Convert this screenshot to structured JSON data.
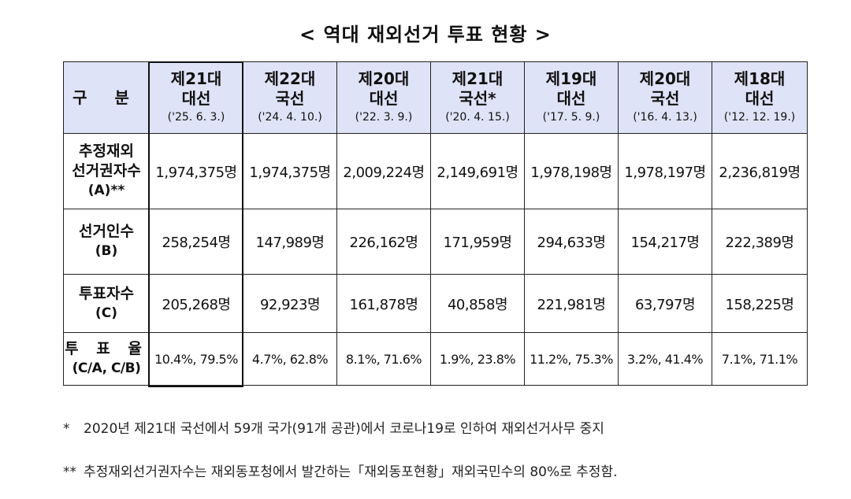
{
  "title": "< 역대 재외선거 투표 현황 >",
  "table": {
    "corner": "구 분",
    "columns": [
      {
        "name": "제21대",
        "type": "대선",
        "date": "('25. 6. 3.)"
      },
      {
        "name": "제22대",
        "type": "국선",
        "date": "('24. 4. 10.)"
      },
      {
        "name": "제20대",
        "type": "대선",
        "date": "('22. 3. 9.)"
      },
      {
        "name": "제21대",
        "type": "국선*",
        "date": "('20. 4. 15.)"
      },
      {
        "name": "제19대",
        "type": "대선",
        "date": "('17. 5. 9.)"
      },
      {
        "name": "제20대",
        "type": "국선",
        "date": "('16. 4. 13.)"
      },
      {
        "name": "제18대",
        "type": "대선",
        "date": "('12. 12. 19.)"
      }
    ],
    "rows": [
      {
        "label1": "추정재외",
        "label2": "선거권자수",
        "label3": "(A)**",
        "values": [
          "1,974,375명",
          "1,974,375명",
          "2,009,224명",
          "2,149,691명",
          "1,978,198명",
          "1,978,197명",
          "2,236,819명"
        ]
      },
      {
        "label1": "선거인수",
        "label2": "(B)",
        "values": [
          "258,254명",
          "147,989명",
          "226,162명",
          "171,959명",
          "294,633명",
          "154,217명",
          "222,389명"
        ]
      },
      {
        "label1": "투표자수",
        "label2": "(C)",
        "values": [
          "205,268명",
          "92,923명",
          "161,878명",
          "40,858명",
          "221,981명",
          "63,797명",
          "158,225명"
        ]
      },
      {
        "label1": "투 표 율",
        "label2": "(C/A, C/B)",
        "values": [
          "10.4%, 79.5%",
          "4.7%, 62.8%",
          "8.1%, 71.6%",
          "1.9%, 23.8%",
          "11.2%, 75.3%",
          "3.2%, 41.4%",
          "7.1%, 71.1%"
        ]
      }
    ]
  },
  "notes": [
    {
      "mark": "*",
      "text": "2020년 제21대 국선에서 59개 국가(91개 공관)에서 코로나19로 인하여 재외선거사무 중지"
    },
    {
      "mark": "**",
      "text": "추정재외선거권자수는 재외동포청에서 발간하는「재외동포현황」재외국민수의 80%로 추정함."
    }
  ]
}
